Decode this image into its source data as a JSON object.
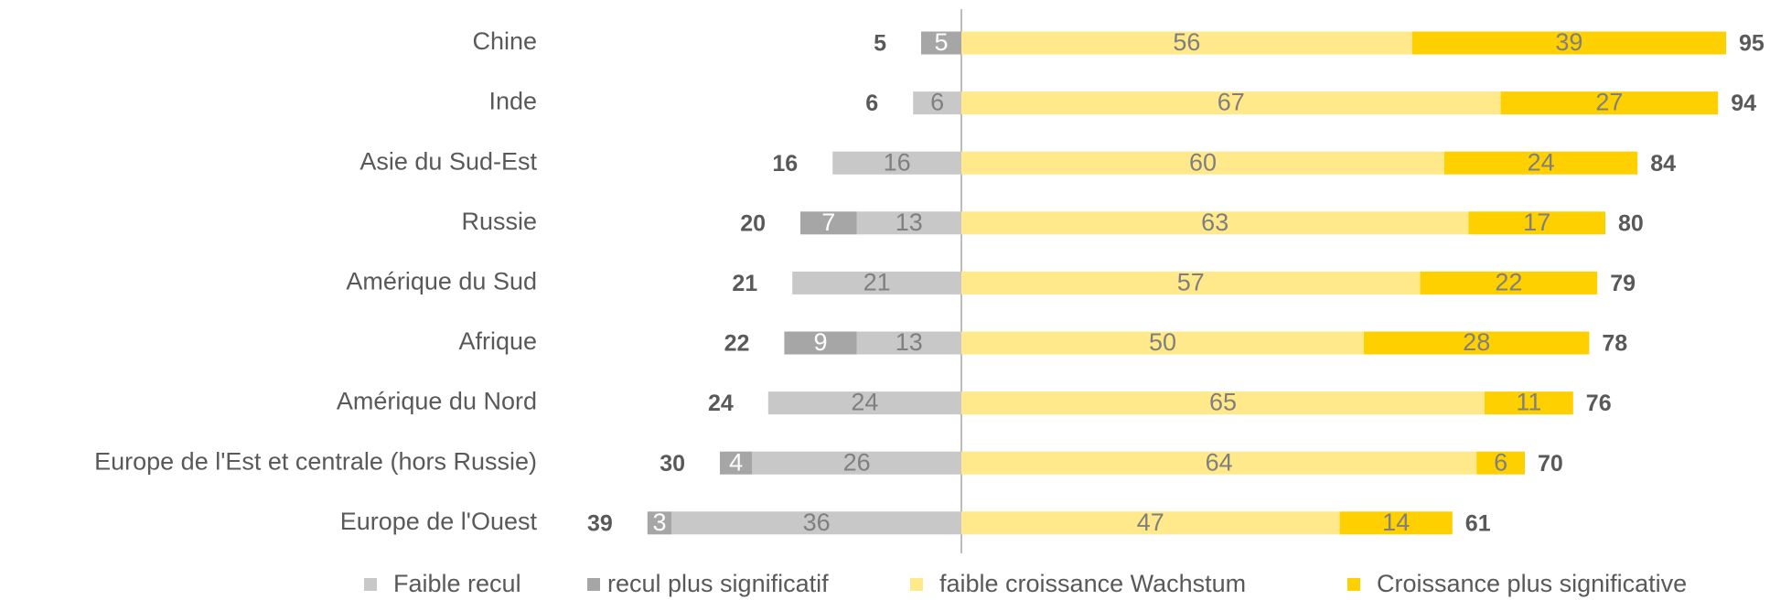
{
  "chart_data": {
    "type": "diverging-bar",
    "categories": [
      "Chine",
      "Inde",
      "Asie du Sud-Est",
      "Russie",
      "Amérique du Sud",
      "Afrique",
      "Amérique du Nord",
      "Europe de l'Est et centrale (hors Russie)",
      "Europe de l'Ouest"
    ],
    "series": [
      {
        "name": "Faible recul",
        "color": "#c8c8c8",
        "side": "negative",
        "values": [
          null,
          6,
          16,
          13,
          21,
          13,
          24,
          26,
          36
        ]
      },
      {
        "name": "recul plus significatif",
        "color": "#a6a6a6",
        "side": "negative",
        "values": [
          5,
          null,
          null,
          7,
          null,
          9,
          null,
          4,
          3
        ]
      },
      {
        "name": "faible croissance Wachstum",
        "color": "#ffe98a",
        "side": "positive",
        "values": [
          56,
          67,
          60,
          63,
          57,
          50,
          65,
          64,
          47
        ]
      },
      {
        "name": "Croissance plus significative",
        "color": "#ffd000",
        "side": "positive",
        "values": [
          39,
          27,
          24,
          17,
          22,
          28,
          11,
          6,
          14
        ]
      }
    ],
    "negative_totals": [
      5,
      6,
      16,
      20,
      21,
      22,
      24,
      30,
      39
    ],
    "positive_totals": [
      95,
      94,
      84,
      80,
      79,
      78,
      76,
      70,
      61
    ]
  }
}
